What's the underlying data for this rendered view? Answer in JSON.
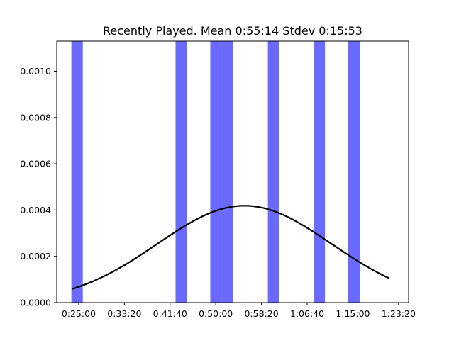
{
  "chart_data": {
    "type": "bar",
    "title": "Recently Played. Mean 0:55:14 Stdev 0:15:53",
    "xlabel": "",
    "ylabel": "",
    "x_unit": "seconds",
    "xlim": [
      1260,
      5110
    ],
    "ylim": [
      0,
      0.00113
    ],
    "x_ticks": [
      {
        "value": 1500,
        "label": "0:25:00"
      },
      {
        "value": 2000,
        "label": "0:33:20"
      },
      {
        "value": 2500,
        "label": "0:41:40"
      },
      {
        "value": 3000,
        "label": "0:50:00"
      },
      {
        "value": 3500,
        "label": "0:58:20"
      },
      {
        "value": 4000,
        "label": "1:06:40"
      },
      {
        "value": 4500,
        "label": "1:15:00"
      },
      {
        "value": 5000,
        "label": "1:23:20"
      }
    ],
    "y_ticks": [
      {
        "value": 0,
        "label": "0.0000"
      },
      {
        "value": 0.0002,
        "label": "0.0002"
      },
      {
        "value": 0.0004,
        "label": "0.0004"
      },
      {
        "value": 0.0006,
        "label": "0.0006"
      },
      {
        "value": 0.0008,
        "label": "0.0008"
      },
      {
        "value": 0.001,
        "label": "0.0010"
      }
    ],
    "bars": [
      {
        "x0": 1420,
        "x1": 1545,
        "value": 0.00113
      },
      {
        "x0": 2560,
        "x1": 2685,
        "value": 0.00113
      },
      {
        "x0": 2940,
        "x1": 3065,
        "value": 0.00113
      },
      {
        "x0": 3065,
        "x1": 3190,
        "value": 0.00113
      },
      {
        "x0": 3570,
        "x1": 3695,
        "value": 0.00113
      },
      {
        "x0": 4070,
        "x1": 4195,
        "value": 0.00113
      },
      {
        "x0": 4450,
        "x1": 4575,
        "value": 0.00113
      }
    ],
    "curve": {
      "kind": "normal_pdf",
      "mean": 3314,
      "stdev": 953,
      "x_range": [
        1430,
        4900
      ]
    },
    "grid": false,
    "legend": "none",
    "colors": {
      "bar": "#6a6aff",
      "curve": "#000000",
      "axes": "#000000"
    }
  }
}
